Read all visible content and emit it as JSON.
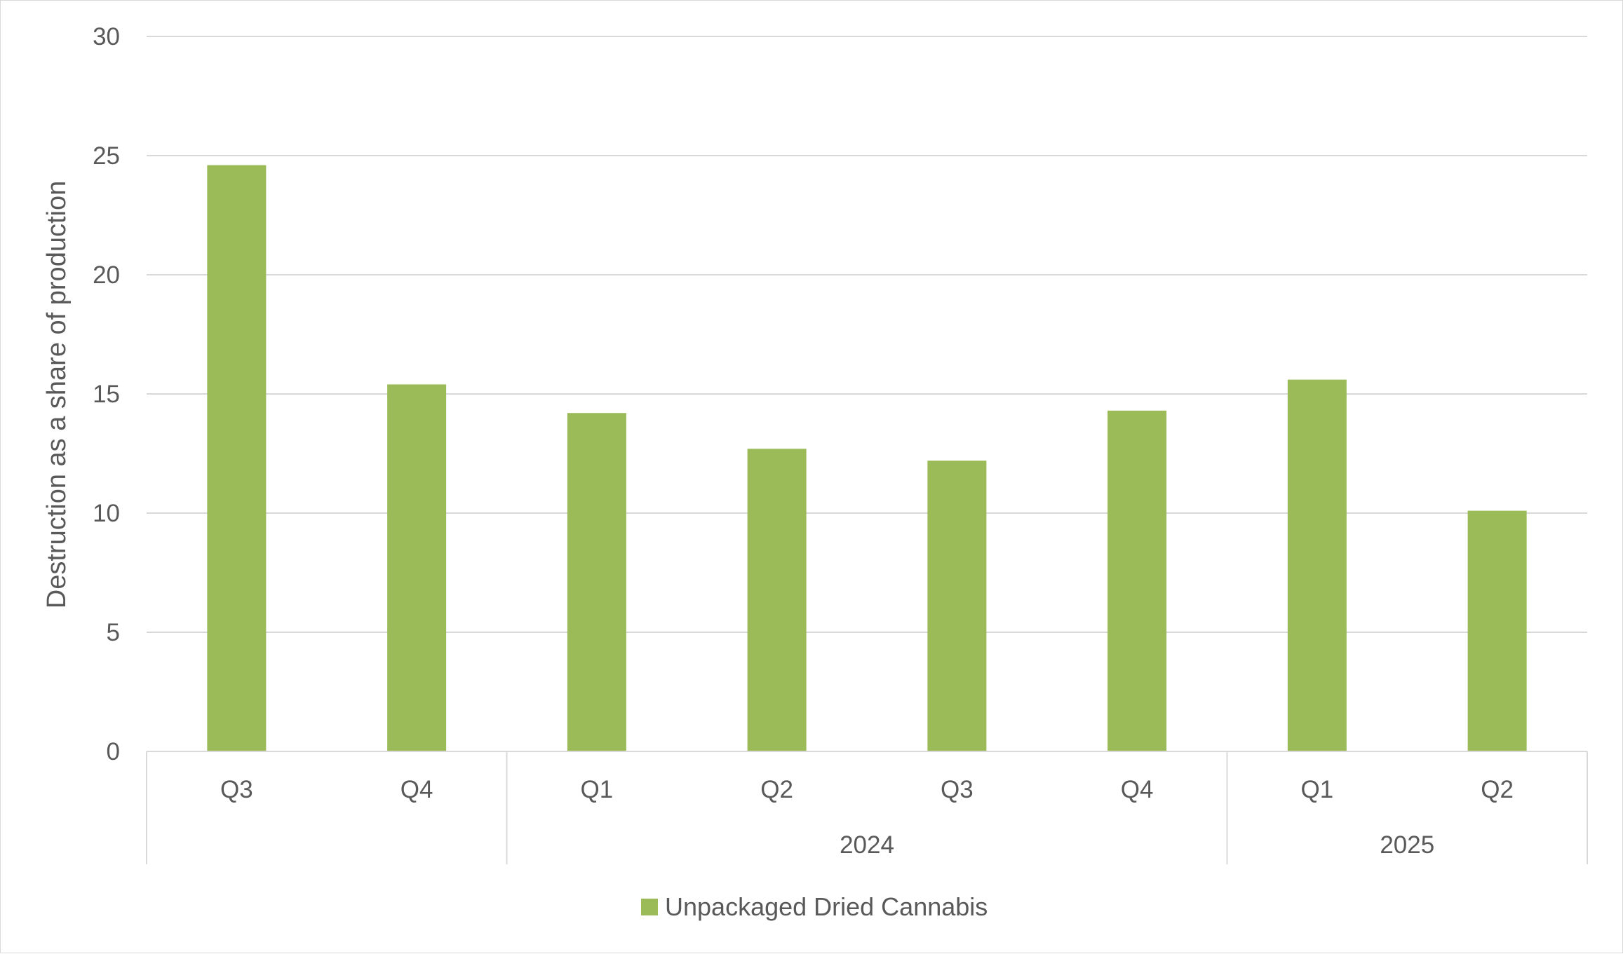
{
  "chart_data": {
    "type": "bar",
    "title": "",
    "xlabel": "",
    "ylabel": "Destruction as a share of production",
    "ylim": [
      0,
      30
    ],
    "yticks": [
      0,
      5,
      10,
      15,
      20,
      25,
      30
    ],
    "grid": true,
    "legend_position": "bottom",
    "categories": [
      "Q3",
      "Q4",
      "Q1",
      "Q2",
      "Q3",
      "Q4",
      "Q1",
      "Q2"
    ],
    "groups": [
      {
        "label": "",
        "count": 2
      },
      {
        "label": "2024",
        "count": 4
      },
      {
        "label": "2025",
        "count": 2
      }
    ],
    "series": [
      {
        "name": "Unpackaged Dried Cannabis",
        "color": "#9bbb59",
        "values": [
          24.6,
          15.4,
          14.2,
          12.7,
          12.2,
          14.3,
          15.6,
          10.1
        ]
      }
    ]
  }
}
